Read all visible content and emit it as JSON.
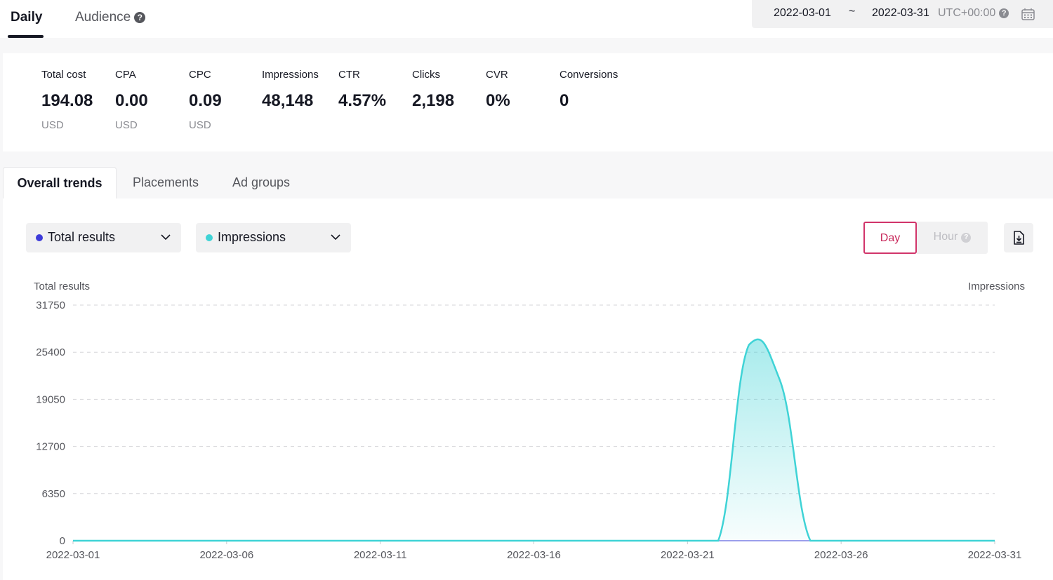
{
  "top_tabs": [
    {
      "label": "Daily",
      "active": true
    },
    {
      "label": "Audience",
      "active": false,
      "help": "?"
    }
  ],
  "date_range": {
    "start": "2022-03-01",
    "separator": "~",
    "end": "2022-03-31",
    "timezone": "UTC+00:00",
    "help": "?"
  },
  "metrics": [
    {
      "label": "Total cost",
      "value": "194.08",
      "unit": "USD"
    },
    {
      "label": "CPA",
      "value": "0.00",
      "unit": "USD"
    },
    {
      "label": "CPC",
      "value": "0.09",
      "unit": "USD"
    },
    {
      "label": "Impressions",
      "value": "48,148",
      "unit": ""
    },
    {
      "label": "CTR",
      "value": "4.57%",
      "unit": ""
    },
    {
      "label": "Clicks",
      "value": "2,198",
      "unit": ""
    },
    {
      "label": "CVR",
      "value": "0%",
      "unit": ""
    },
    {
      "label": "Conversions",
      "value": "0",
      "unit": ""
    }
  ],
  "section_tabs": [
    {
      "label": "Overall trends",
      "active": true
    },
    {
      "label": "Placements",
      "active": false
    },
    {
      "label": "Ad groups",
      "active": false
    }
  ],
  "controls": {
    "metric_select_1": {
      "label": "Total results",
      "dot_color": "#3d3bd9"
    },
    "metric_select_2": {
      "label": "Impressions",
      "dot_color": "#3fd3d6"
    },
    "granularity": {
      "day": "Day",
      "hour": "Hour",
      "hour_help": "?"
    },
    "download_icon": "download-icon"
  },
  "chart_data": {
    "type": "area",
    "left_axis_label": "Total results",
    "right_axis_label": "Impressions",
    "y_ticks": [
      0,
      6350,
      12700,
      19050,
      25400,
      31750
    ],
    "ylim": [
      0,
      31750
    ],
    "x_ticks": [
      "2022-03-01",
      "2022-03-06",
      "2022-03-11",
      "2022-03-16",
      "2022-03-21",
      "2022-03-26",
      "2022-03-31"
    ],
    "grid": true,
    "series": [
      {
        "name": "Impressions",
        "color": "#3fd3d6",
        "x": [
          "2022-03-01",
          "2022-03-02",
          "2022-03-03",
          "2022-03-04",
          "2022-03-05",
          "2022-03-06",
          "2022-03-07",
          "2022-03-08",
          "2022-03-09",
          "2022-03-10",
          "2022-03-11",
          "2022-03-12",
          "2022-03-13",
          "2022-03-14",
          "2022-03-15",
          "2022-03-16",
          "2022-03-17",
          "2022-03-18",
          "2022-03-19",
          "2022-03-20",
          "2022-03-21",
          "2022-03-22",
          "2022-03-23",
          "2022-03-24",
          "2022-03-25",
          "2022-03-26",
          "2022-03-27",
          "2022-03-28",
          "2022-03-29",
          "2022-03-30",
          "2022-03-31"
        ],
        "values": [
          0,
          0,
          0,
          0,
          0,
          0,
          0,
          0,
          0,
          0,
          0,
          0,
          0,
          0,
          0,
          0,
          0,
          0,
          0,
          0,
          0,
          0,
          26400,
          21700,
          0,
          0,
          0,
          0,
          0,
          0,
          0
        ]
      },
      {
        "name": "Total results",
        "color": "#3d3bd9",
        "values": [
          0,
          0,
          0,
          0,
          0,
          0,
          0,
          0,
          0,
          0,
          0,
          0,
          0,
          0,
          0,
          0,
          0,
          0,
          0,
          0,
          0,
          0,
          0,
          0,
          0,
          0,
          0,
          0,
          0,
          0,
          0
        ]
      }
    ]
  }
}
